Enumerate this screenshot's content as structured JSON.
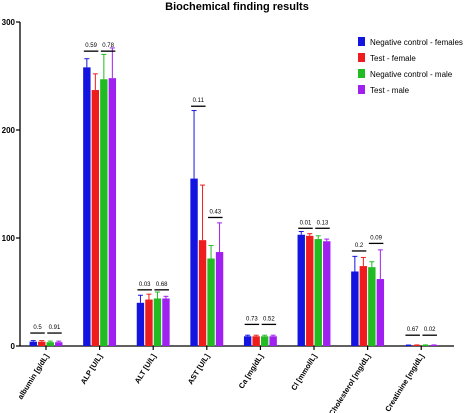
{
  "chart_data": {
    "type": "bar",
    "title": "Biochemical finding results",
    "xlabel": "",
    "ylabel": "",
    "ylim": [
      0,
      300
    ],
    "yticks": [
      0,
      100,
      200,
      300
    ],
    "categories": [
      "albumin [g/dL]",
      "ALP [U/L]",
      "ALT [U/L]",
      "AST [U/L]",
      "Ca [mg/dL]",
      "Cl [mmol/L]",
      "Cholesterol [mg/dL]",
      "Creatinine [mg/dL]"
    ],
    "series": [
      {
        "name": "Negative control - females",
        "color": "#1414e0",
        "values": [
          4,
          258,
          40,
          155,
          9,
          103,
          69,
          0.7
        ],
        "errors": [
          1,
          8,
          7,
          63,
          1,
          3,
          14,
          0.2
        ]
      },
      {
        "name": "Test - female",
        "color": "#ee1c1c",
        "values": [
          4,
          237,
          43,
          98,
          9,
          102,
          74,
          0.8
        ],
        "errors": [
          1,
          15,
          5,
          51,
          1,
          2,
          8,
          0.2
        ]
      },
      {
        "name": "Negative control - male",
        "color": "#22bb22",
        "values": [
          3.5,
          247,
          44,
          81,
          9,
          99,
          73,
          0.8
        ],
        "errors": [
          1,
          23,
          6,
          12,
          1,
          3,
          5,
          0.2
        ]
      },
      {
        "name": "Test - male",
        "color": "#a020f0",
        "values": [
          3.5,
          248,
          44,
          87,
          9,
          97,
          62,
          0.8
        ],
        "errors": [
          1,
          28,
          2,
          27,
          1,
          2,
          27,
          0.2
        ]
      }
    ],
    "comparisons": [
      {
        "category": 0,
        "pair": "female",
        "p": "0.5",
        "y": 12
      },
      {
        "category": 0,
        "pair": "male",
        "p": "0.91",
        "y": 12
      },
      {
        "category": 1,
        "pair": "female",
        "p": "0.59",
        "y": 273
      },
      {
        "category": 1,
        "pair": "male",
        "p": "0.78",
        "y": 273
      },
      {
        "category": 2,
        "pair": "female",
        "p": "0.03",
        "y": 52
      },
      {
        "category": 2,
        "pair": "male",
        "p": "0.68",
        "y": 52
      },
      {
        "category": 3,
        "pair": "female",
        "p": "0.11",
        "y": 222
      },
      {
        "category": 3,
        "pair": "male",
        "p": "0.43",
        "y": 119
      },
      {
        "category": 4,
        "pair": "female",
        "p": "0.73",
        "y": 20
      },
      {
        "category": 4,
        "pair": "male",
        "p": "0.52",
        "y": 20
      },
      {
        "category": 5,
        "pair": "female",
        "p": "0.01",
        "y": 109
      },
      {
        "category": 5,
        "pair": "male",
        "p": "0.13",
        "y": 109
      },
      {
        "category": 6,
        "pair": "female",
        "p": "0.2",
        "y": 88
      },
      {
        "category": 6,
        "pair": "male",
        "p": "0.09",
        "y": 95
      },
      {
        "category": 7,
        "pair": "female",
        "p": "0.67",
        "y": 10
      },
      {
        "category": 7,
        "pair": "male",
        "p": "0.02",
        "y": 10
      }
    ],
    "legend_position": "top-right",
    "grid": false
  }
}
